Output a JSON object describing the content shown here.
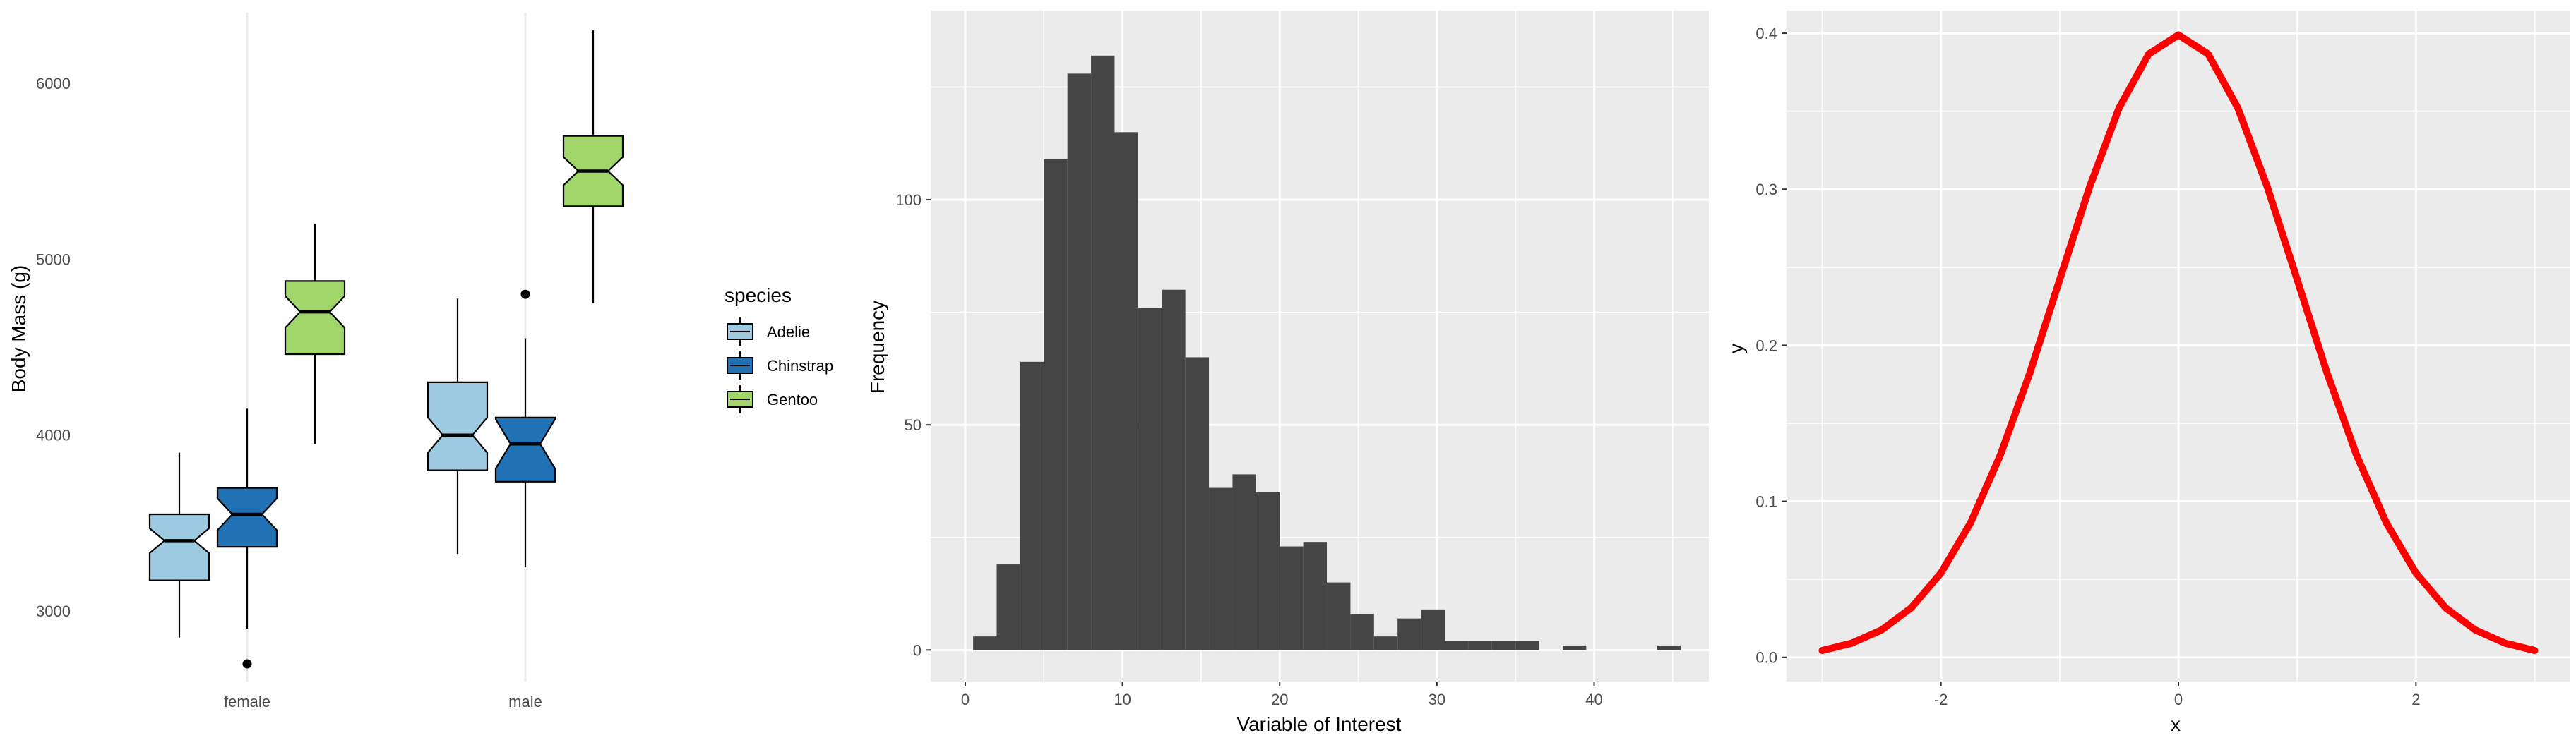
{
  "colors": {
    "panel_bg": "#EBEBEB",
    "grid_major": "#FFFFFF",
    "grid_light": "#EBEBEB",
    "histogram_fill": "#454545",
    "curve": "#FF0000",
    "box_outline": "#000000",
    "outlier": "#000000"
  },
  "chart_data": [
    {
      "type": "box",
      "xlabel": "",
      "ylabel": "Body Mass (g)",
      "categories": [
        "female",
        "male"
      ],
      "ylim": [
        2600,
        6400
      ],
      "yticks": [
        3000,
        4000,
        5000,
        6000
      ],
      "grid": "light",
      "notched": true,
      "legend": {
        "title": "species",
        "placement": "right",
        "entries": [
          {
            "name": "Adelie",
            "color": "#9ECAE1"
          },
          {
            "name": "Chinstrap",
            "color": "#2171B5"
          },
          {
            "name": "Gentoo",
            "color": "#A1D76A"
          }
        ]
      },
      "boxes": [
        {
          "category": "female",
          "species": "Adelie",
          "color": "#9ECAE1",
          "whisker_low": 2850,
          "q1": 3175,
          "median": 3400,
          "q3": 3550,
          "whisker_high": 3900,
          "notch_low": 3330,
          "notch_high": 3470,
          "outliers": []
        },
        {
          "category": "female",
          "species": "Chinstrap",
          "color": "#2171B5",
          "whisker_low": 2900,
          "q1": 3365,
          "median": 3550,
          "q3": 3700,
          "whisker_high": 4150,
          "notch_low": 3460,
          "notch_high": 3640,
          "outliers": [
            2700
          ]
        },
        {
          "category": "female",
          "species": "Gentoo",
          "color": "#A1D76A",
          "whisker_low": 3950,
          "q1": 4460,
          "median": 4700,
          "q3": 4875,
          "whisker_high": 5200,
          "notch_low": 4610,
          "notch_high": 4790,
          "outliers": []
        },
        {
          "category": "male",
          "species": "Adelie",
          "color": "#9ECAE1",
          "whisker_low": 3325,
          "q1": 3800,
          "median": 4000,
          "q3": 4300,
          "whisker_high": 4775,
          "notch_low": 3900,
          "notch_high": 4100,
          "outliers": []
        },
        {
          "category": "male",
          "species": "Chinstrap",
          "color": "#2171B5",
          "whisker_low": 3250,
          "q1": 3735,
          "median": 3950,
          "q3": 4100,
          "whisker_high": 4550,
          "notch_low": 3810,
          "notch_high": 4090,
          "outliers": [
            4800
          ]
        },
        {
          "category": "male",
          "species": "Gentoo",
          "color": "#A1D76A",
          "whisker_low": 4750,
          "q1": 5300,
          "median": 5500,
          "q3": 5700,
          "whisker_high": 6300,
          "notch_low": 5420,
          "notch_high": 5580,
          "outliers": []
        }
      ]
    },
    {
      "type": "histogram",
      "xlabel": "Variable of Interest",
      "ylabel": "Frequency",
      "xlim": [
        -2.2,
        47.3
      ],
      "ylim": [
        -7,
        142
      ],
      "xticks": [
        0,
        10,
        20,
        30,
        40
      ],
      "yticks": [
        0,
        50,
        100
      ],
      "grid": "on",
      "bins": [
        {
          "x0": 0.5,
          "x1": 2.0,
          "count": 3
        },
        {
          "x0": 2.0,
          "x1": 3.5,
          "count": 19
        },
        {
          "x0": 3.5,
          "x1": 5.0,
          "count": 64
        },
        {
          "x0": 5.0,
          "x1": 6.5,
          "count": 109
        },
        {
          "x0": 6.5,
          "x1": 8.0,
          "count": 128
        },
        {
          "x0": 8.0,
          "x1": 9.5,
          "count": 132
        },
        {
          "x0": 9.5,
          "x1": 11.0,
          "count": 115
        },
        {
          "x0": 11.0,
          "x1": 12.5,
          "count": 76
        },
        {
          "x0": 12.5,
          "x1": 14.0,
          "count": 80
        },
        {
          "x0": 14.0,
          "x1": 15.5,
          "count": 65
        },
        {
          "x0": 15.5,
          "x1": 17.0,
          "count": 36
        },
        {
          "x0": 17.0,
          "x1": 18.5,
          "count": 39
        },
        {
          "x0": 18.5,
          "x1": 20.0,
          "count": 35
        },
        {
          "x0": 20.0,
          "x1": 21.5,
          "count": 23
        },
        {
          "x0": 21.5,
          "x1": 23.0,
          "count": 24
        },
        {
          "x0": 23.0,
          "x1": 24.5,
          "count": 15
        },
        {
          "x0": 24.5,
          "x1": 26.0,
          "count": 8
        },
        {
          "x0": 26.0,
          "x1": 27.5,
          "count": 3
        },
        {
          "x0": 27.5,
          "x1": 29.0,
          "count": 7
        },
        {
          "x0": 29.0,
          "x1": 30.5,
          "count": 9
        },
        {
          "x0": 30.5,
          "x1": 32.0,
          "count": 2
        },
        {
          "x0": 32.0,
          "x1": 33.5,
          "count": 2
        },
        {
          "x0": 33.5,
          "x1": 35.0,
          "count": 2
        },
        {
          "x0": 35.0,
          "x1": 36.5,
          "count": 2
        },
        {
          "x0": 38.0,
          "x1": 39.5,
          "count": 1
        },
        {
          "x0": 44.0,
          "x1": 45.5,
          "count": 1
        }
      ]
    },
    {
      "type": "line",
      "xlabel": "x",
      "ylabel": "y",
      "xlim": [
        -3.3,
        3.3
      ],
      "ylim": [
        -0.0155,
        0.4145
      ],
      "xticks": [
        -2,
        0,
        2
      ],
      "yticks": [
        0.0,
        0.1,
        0.2,
        0.3,
        0.4
      ],
      "ytick_labels": [
        "0.0",
        "0.1",
        "0.2",
        "0.3",
        "0.4"
      ],
      "grid": "on",
      "series": [
        {
          "color": "#FF0000",
          "x": [
            -3.0,
            -2.75,
            -2.5,
            -2.25,
            -2.0,
            -1.75,
            -1.5,
            -1.25,
            -1.0,
            -0.75,
            -0.5,
            -0.25,
            0.0,
            0.25,
            0.5,
            0.75,
            1.0,
            1.25,
            1.5,
            1.75,
            2.0,
            2.25,
            2.5,
            2.75,
            3.0
          ],
          "y": [
            0.0044,
            0.0091,
            0.0175,
            0.0317,
            0.054,
            0.0863,
            0.1295,
            0.1826,
            0.242,
            0.3011,
            0.3521,
            0.3867,
            0.3989,
            0.3867,
            0.3521,
            0.3011,
            0.242,
            0.1826,
            0.1295,
            0.0863,
            0.054,
            0.0317,
            0.0175,
            0.0091,
            0.0044
          ]
        }
      ]
    }
  ]
}
